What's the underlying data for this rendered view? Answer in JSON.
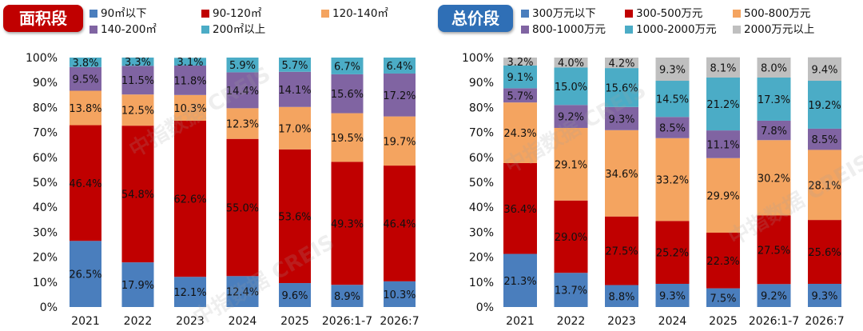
{
  "charts": [
    {
      "badge": "面积段",
      "watermark": "中指数据 CREIS",
      "chart_data": {
        "type": "bar",
        "stacked": true,
        "percent": true,
        "categories": [
          "2021",
          "2022",
          "2023",
          "2024",
          "2025",
          "2026:1-7",
          "2026:7"
        ],
        "ylim": [
          0,
          100
        ],
        "yticks": [
          "0%",
          "10%",
          "20%",
          "30%",
          "40%",
          "50%",
          "60%",
          "70%",
          "80%",
          "90%",
          "100%"
        ],
        "legend_position": "top",
        "series": [
          {
            "name": "90㎡以下",
            "color": "#4a7ebd",
            "values": [
              26.5,
              17.9,
              12.1,
              12.4,
              9.6,
              8.9,
              10.3
            ],
            "labels": [
              "26.5%",
              "17.9%",
              "12.1%",
              "12.4%",
              "9.6%",
              "8.9%",
              "10.3%"
            ]
          },
          {
            "name": "90-120㎡",
            "color": "#c00000",
            "values": [
              46.4,
              54.8,
              62.6,
              55.0,
              53.6,
              49.3,
              46.4
            ],
            "labels": [
              "46.4%",
              "54.8%",
              "62.6%",
              "55.0%",
              "53.6%",
              "49.3%",
              "46.4%"
            ]
          },
          {
            "name": "120-140㎡",
            "color": "#f4a460",
            "values": [
              13.8,
              12.5,
              10.3,
              12.3,
              17.0,
              19.5,
              19.7
            ],
            "labels": [
              "13.8%",
              "12.5%",
              "10.3%",
              "12.3%",
              "17.0%",
              "19.5%",
              "19.7%"
            ]
          },
          {
            "name": "140-200㎡",
            "color": "#8064a2",
            "values": [
              9.5,
              11.5,
              11.8,
              14.4,
              14.1,
              15.6,
              17.2
            ],
            "labels": [
              "9.5%",
              "11.5%",
              "11.8%",
              "14.4%",
              "14.1%",
              "15.6%",
              "17.2%"
            ]
          },
          {
            "name": "200㎡以上",
            "color": "#4bacc6",
            "values": [
              3.8,
              3.3,
              3.1,
              5.9,
              5.7,
              6.7,
              6.4
            ],
            "labels": [
              "3.8%",
              "3.3%",
              "3.1%",
              "5.9%",
              "5.7%",
              "6.7%",
              "6.4%"
            ]
          }
        ]
      }
    },
    {
      "badge": "总价段",
      "watermark": "中指数据 CREIS",
      "chart_data": {
        "type": "bar",
        "stacked": true,
        "percent": true,
        "categories": [
          "2021",
          "2022",
          "2023",
          "2024",
          "2025",
          "2026:1-7",
          "2026:7"
        ],
        "ylim": [
          0,
          100
        ],
        "yticks": [
          "0%",
          "10%",
          "20%",
          "30%",
          "40%",
          "50%",
          "60%",
          "70%",
          "80%",
          "90%",
          "100%"
        ],
        "legend_position": "top",
        "series": [
          {
            "name": "300万元以下",
            "color": "#4a7ebd",
            "values": [
              21.3,
              13.7,
              8.8,
              9.3,
              7.5,
              9.2,
              9.3
            ],
            "labels": [
              "21.3%",
              "13.7%",
              "8.8%",
              "9.3%",
              "7.5%",
              "9.2%",
              "9.3%"
            ]
          },
          {
            "name": "300-500万元",
            "color": "#c00000",
            "values": [
              36.4,
              29.0,
              27.5,
              25.2,
              22.3,
              27.5,
              25.6
            ],
            "labels": [
              "36.4%",
              "29.0%",
              "27.5%",
              "25.2%",
              "22.3%",
              "27.5%",
              "25.6%"
            ]
          },
          {
            "name": "500-800万元",
            "color": "#f4a460",
            "values": [
              24.3,
              29.1,
              34.6,
              33.2,
              29.9,
              30.2,
              28.1
            ],
            "labels": [
              "24.3%",
              "29.1%",
              "34.6%",
              "33.2%",
              "29.9%",
              "30.2%",
              "28.1%"
            ]
          },
          {
            "name": "800-1000万元",
            "color": "#8064a2",
            "values": [
              5.7,
              9.2,
              9.3,
              8.5,
              11.1,
              7.8,
              8.5
            ],
            "labels": [
              "5.7%",
              "9.2%",
              "9.3%",
              "8.5%",
              "11.1%",
              "7.8%",
              "8.5%"
            ]
          },
          {
            "name": "1000-2000万元",
            "color": "#4bacc6",
            "values": [
              9.1,
              15.0,
              15.6,
              14.5,
              21.2,
              17.3,
              19.2
            ],
            "labels": [
              "9.1%",
              "15.0%",
              "15.6%",
              "14.5%",
              "21.2%",
              "17.3%",
              "19.2%"
            ]
          },
          {
            "name": "2000万元以上",
            "color": "#bfbfbf",
            "values": [
              3.2,
              4.0,
              4.2,
              9.3,
              8.1,
              8.0,
              9.4
            ],
            "labels": [
              "3.2%",
              "4.0%",
              "4.2%",
              "9.3%",
              "8.1%",
              "8.0%",
              "9.4%"
            ]
          }
        ]
      }
    }
  ]
}
